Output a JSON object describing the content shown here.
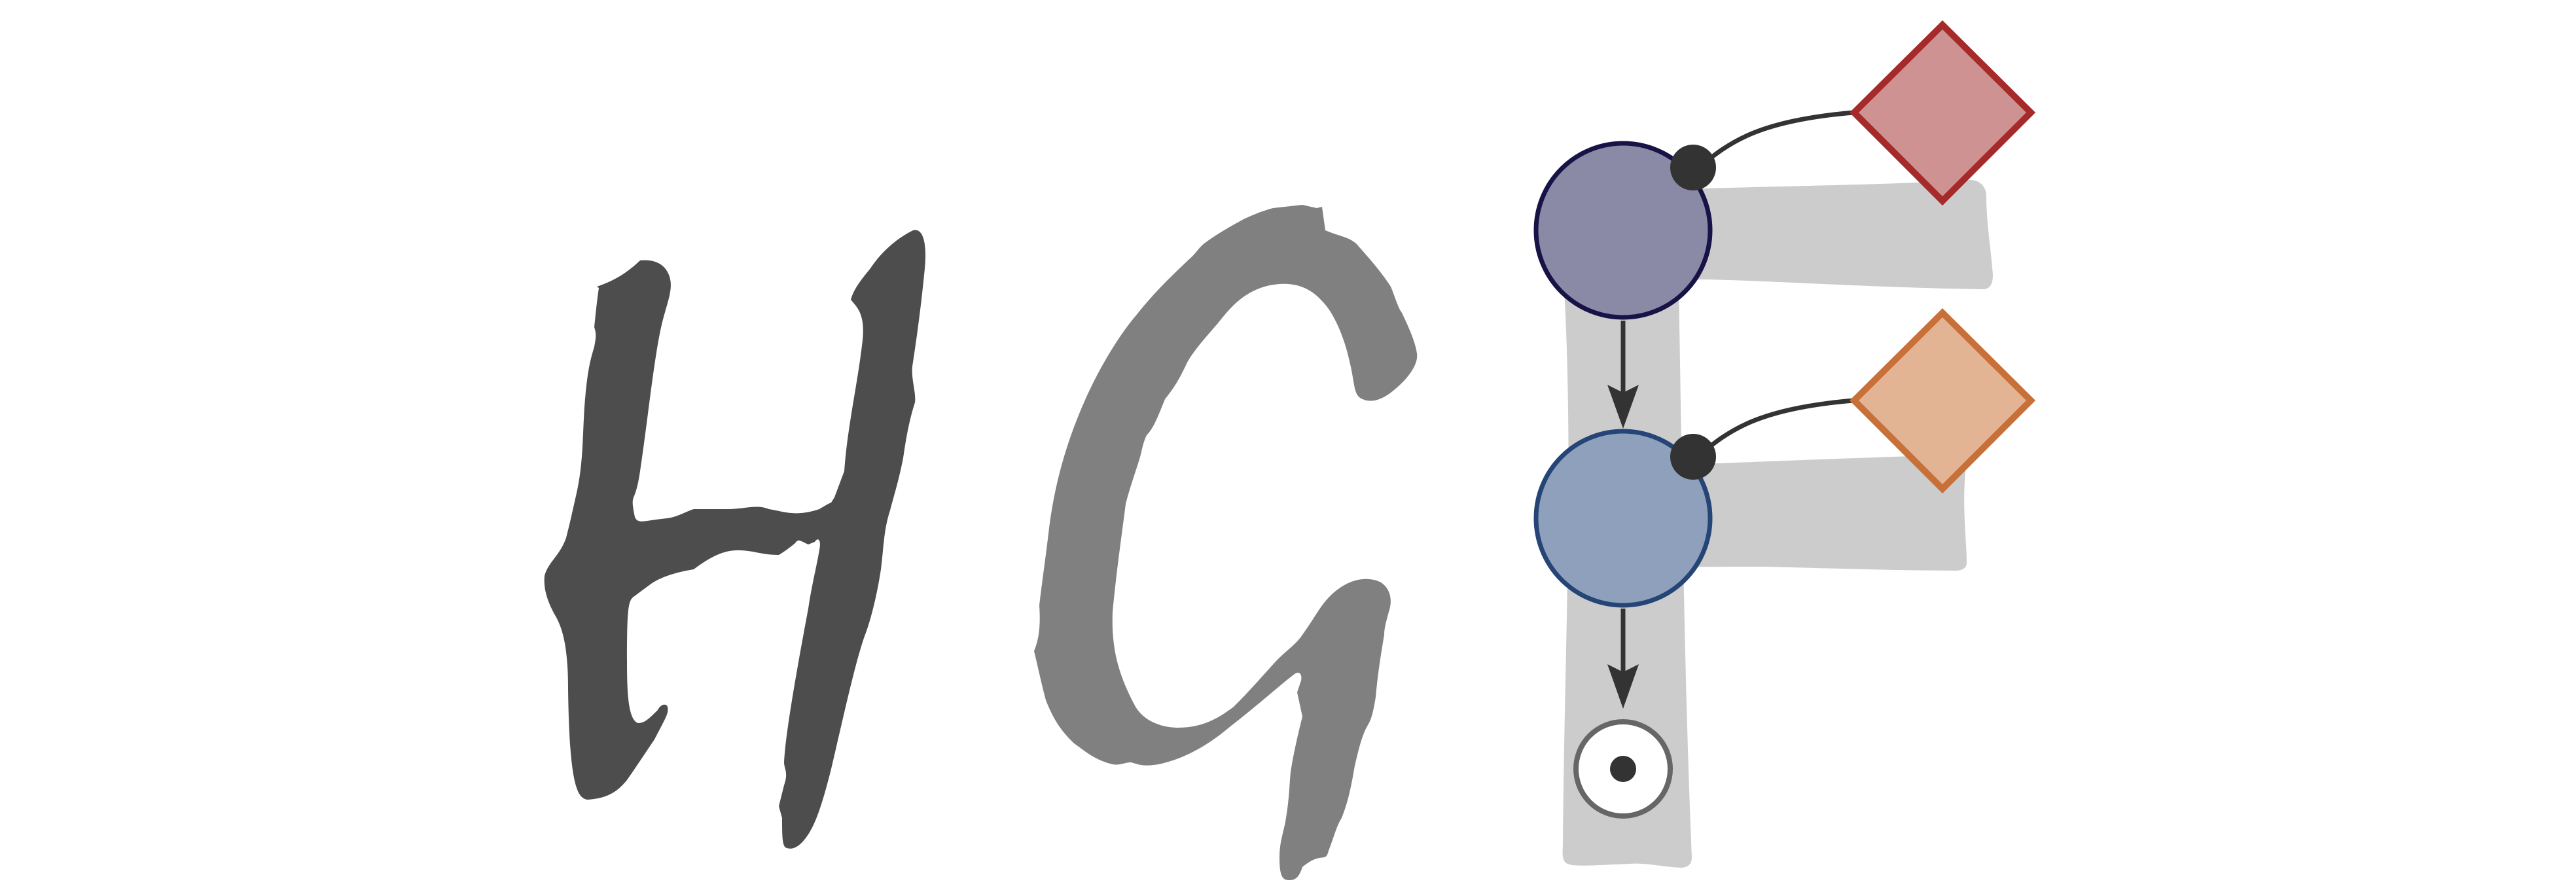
{
  "logo": {
    "wordmark": "HGF",
    "letters": [
      {
        "char": "H",
        "color": "#4d4d4d"
      },
      {
        "char": "G",
        "color": "#808080"
      },
      {
        "char": "F",
        "color": "#cccccc"
      }
    ]
  },
  "diagram": {
    "nodes": [
      {
        "id": "top-circle",
        "shape": "circle",
        "fill": "#8a89a6",
        "stroke": "#171346"
      },
      {
        "id": "middle-circle",
        "shape": "circle",
        "fill": "#8ea0bb",
        "stroke": "#254577"
      },
      {
        "id": "terminal-node",
        "shape": "circle",
        "fill": "#ffffff",
        "stroke": "#666666",
        "center_dot": "#333333"
      },
      {
        "id": "top-diamond",
        "shape": "diamond",
        "fill": "#cf9293",
        "stroke": "#a52a2a"
      },
      {
        "id": "bottom-diamond",
        "shape": "diamond",
        "fill": "#e3b494",
        "stroke": "#c8703a"
      }
    ],
    "edges": [
      {
        "from": "top-circle",
        "to": "middle-circle",
        "style": "arrow"
      },
      {
        "from": "middle-circle",
        "to": "terminal-node",
        "style": "arrow"
      },
      {
        "from": "top-circle",
        "to": "top-diamond",
        "style": "curve"
      },
      {
        "from": "middle-circle",
        "to": "bottom-diamond",
        "style": "curve"
      }
    ],
    "colors": {
      "edge": "#333333",
      "junction": "#333333"
    }
  }
}
